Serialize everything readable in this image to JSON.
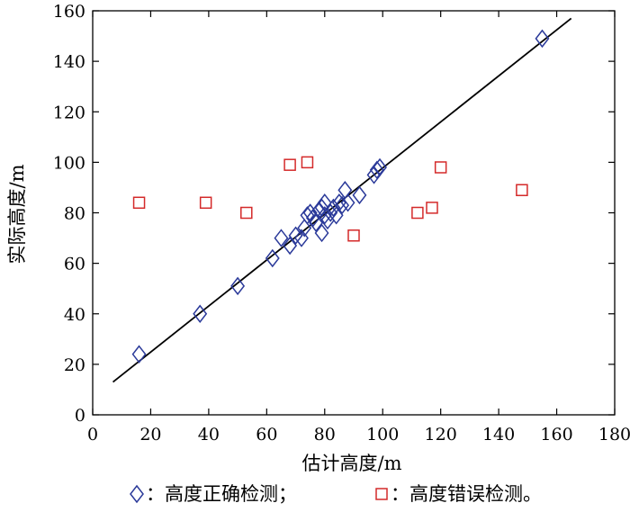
{
  "chart_data": {
    "type": "scatter",
    "title": "",
    "xlabel": "估计高度/m",
    "ylabel": "实际高度/m",
    "xlim": [
      0,
      180
    ],
    "ylim": [
      0,
      160
    ],
    "xticks": [
      "0",
      "20",
      "40",
      "60",
      "80",
      "100",
      "120",
      "140",
      "160",
      "180"
    ],
    "yticks": [
      "0",
      "20",
      "40",
      "60",
      "80",
      "100",
      "120",
      "140",
      "160"
    ],
    "grid": false,
    "legend_position": "bottom",
    "fit_line": {
      "x": [
        7,
        165
      ],
      "y": [
        13,
        157
      ],
      "color": "#000000"
    },
    "series": [
      {
        "name": "：高度正确检测；",
        "marker": "diamond",
        "color": "#2b3a9a",
        "points": [
          [
            16,
            24
          ],
          [
            37,
            40
          ],
          [
            50,
            51
          ],
          [
            62,
            62
          ],
          [
            65,
            70
          ],
          [
            68,
            67
          ],
          [
            70,
            71
          ],
          [
            72,
            70
          ],
          [
            73,
            74
          ],
          [
            74,
            79
          ],
          [
            75,
            80
          ],
          [
            76,
            78
          ],
          [
            77,
            76
          ],
          [
            78,
            81
          ],
          [
            79,
            82
          ],
          [
            79,
            72
          ],
          [
            80,
            84
          ],
          [
            80,
            79
          ],
          [
            81,
            77
          ],
          [
            82,
            80
          ],
          [
            83,
            82
          ],
          [
            84,
            79
          ],
          [
            85,
            84
          ],
          [
            86,
            83
          ],
          [
            87,
            89
          ],
          [
            88,
            84
          ],
          [
            92,
            87
          ],
          [
            97,
            95
          ],
          [
            98,
            97
          ],
          [
            99,
            98
          ],
          [
            155,
            149
          ]
        ]
      },
      {
        "name": "：高度错误检测。",
        "marker": "square",
        "color": "#d42a2a",
        "points": [
          [
            16,
            84
          ],
          [
            39,
            84
          ],
          [
            53,
            80
          ],
          [
            68,
            99
          ],
          [
            74,
            100
          ],
          [
            90,
            71
          ],
          [
            112,
            80
          ],
          [
            117,
            82
          ],
          [
            120,
            98
          ],
          [
            148,
            89
          ]
        ]
      }
    ]
  }
}
